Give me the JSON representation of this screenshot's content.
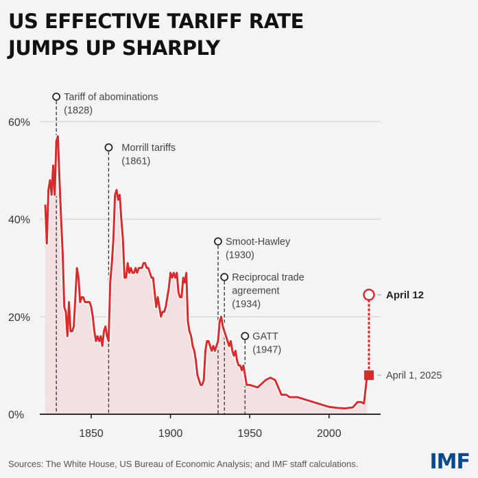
{
  "title": [
    "US EFFECTIVE TARIFF RATE",
    "JUMPS UP SHARPLY"
  ],
  "footer": {
    "sources": "Sources: The White House, US Bureau of Economic Analysis; and IMF staff calculations.",
    "logo": "IMF"
  },
  "colors": {
    "line": "#d92b2b",
    "fill": "#f3e1e1",
    "grid": "#d9d9d9",
    "axis": "#111111",
    "annotation": "#333333",
    "logo": "#0a4a8c"
  },
  "chart_data": {
    "type": "area",
    "title": "US effective tariff rate jumps up sharply",
    "xlabel": "",
    "ylabel": "",
    "xlim": [
      1821,
      2031
    ],
    "ylim": [
      0,
      65
    ],
    "x_ticks": [
      1850,
      1900,
      1950,
      2000
    ],
    "y_ticks": [
      {
        "value": 0,
        "label": "0%"
      },
      {
        "value": 20,
        "label": "20%"
      },
      {
        "value": 40,
        "label": "40%"
      },
      {
        "value": 60,
        "label": "60%"
      }
    ],
    "grid": "horizontal",
    "series": [
      {
        "name": "US effective tariff rate (%)",
        "x": [
          1821,
          1822,
          1823,
          1824,
          1825,
          1826,
          1827,
          1828,
          1829,
          1830,
          1831,
          1832,
          1833,
          1834,
          1835,
          1836,
          1837,
          1838,
          1839,
          1840,
          1841,
          1842,
          1843,
          1844,
          1845,
          1846,
          1847,
          1848,
          1849,
          1850,
          1851,
          1852,
          1853,
          1854,
          1855,
          1856,
          1857,
          1858,
          1859,
          1860,
          1861,
          1862,
          1863,
          1864,
          1865,
          1866,
          1867,
          1868,
          1869,
          1870,
          1871,
          1872,
          1873,
          1874,
          1875,
          1876,
          1877,
          1878,
          1879,
          1880,
          1881,
          1882,
          1883,
          1884,
          1885,
          1886,
          1887,
          1888,
          1889,
          1890,
          1891,
          1892,
          1893,
          1894,
          1895,
          1896,
          1897,
          1898,
          1899,
          1900,
          1901,
          1902,
          1903,
          1904,
          1905,
          1906,
          1907,
          1908,
          1909,
          1910,
          1911,
          1912,
          1913,
          1914,
          1915,
          1916,
          1917,
          1918,
          1919,
          1920,
          1921,
          1922,
          1923,
          1924,
          1925,
          1926,
          1927,
          1928,
          1929,
          1930,
          1931,
          1932,
          1933,
          1934,
          1935,
          1936,
          1937,
          1938,
          1939,
          1940,
          1941,
          1942,
          1943,
          1944,
          1945,
          1946,
          1947,
          1948,
          1949,
          1950,
          1955,
          1960,
          1963,
          1966,
          1970,
          1973,
          1975,
          1980,
          1985,
          1990,
          1995,
          2000,
          2005,
          2010,
          2015,
          2018,
          2020,
          2022,
          2023,
          2024
        ],
        "values": [
          43,
          35,
          46,
          48,
          45,
          51,
          45,
          56,
          57,
          48,
          40,
          33,
          22,
          21,
          16,
          23,
          17,
          17,
          18,
          24,
          30,
          28,
          23,
          24,
          24,
          23,
          23,
          23,
          23,
          22,
          20,
          17,
          15,
          16,
          15,
          16,
          14,
          17,
          18,
          16,
          15,
          27,
          31,
          36,
          45,
          46,
          44,
          45,
          40,
          36,
          28,
          28,
          31,
          29,
          30,
          29,
          29,
          30,
          29,
          30,
          30,
          30,
          31,
          31,
          30,
          30,
          29,
          28,
          28,
          25,
          22,
          24,
          22,
          20,
          21,
          21,
          22,
          24,
          26,
          29,
          28,
          29,
          28,
          29,
          25,
          24,
          24,
          28,
          27,
          29,
          19,
          17,
          16,
          14,
          13,
          11,
          8,
          7,
          6,
          6,
          7,
          13,
          15,
          15,
          14,
          13,
          14,
          13,
          14,
          15,
          19,
          20,
          18,
          17,
          16,
          15,
          14,
          15,
          13,
          12,
          13,
          11,
          10,
          10,
          9,
          10,
          8,
          6,
          6,
          6,
          5.5,
          7,
          7.5,
          7,
          4,
          4,
          3.5,
          3.5,
          3,
          2.5,
          2,
          1.5,
          1.3,
          1.2,
          1.4,
          2.5,
          2.5,
          2.2,
          5,
          8
        ]
      }
    ],
    "annotations": [
      {
        "year": 1828,
        "label_lines": [
          "Tariff of abominations",
          "(1828)"
        ]
      },
      {
        "year": 1861,
        "label_lines": [
          "Morrill tariffs",
          "(1861)"
        ]
      },
      {
        "year": 1930,
        "label_lines": [
          "Smoot-Hawley",
          "(1930)"
        ]
      },
      {
        "year": 1934,
        "label_lines": [
          "Reciprocal trade",
          "agreement",
          "(1934)"
        ]
      },
      {
        "year": 1947,
        "label_lines": [
          "GATT",
          "(1947)"
        ]
      }
    ],
    "highlight_points": [
      {
        "label": "April 1, 2025",
        "value": 8,
        "marker": "square"
      },
      {
        "label": "April 12",
        "value": 24.5,
        "marker": "open-circle"
      }
    ]
  }
}
